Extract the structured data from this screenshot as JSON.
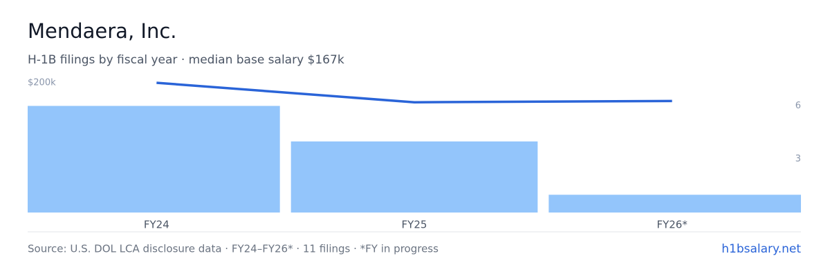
{
  "chart_data": {
    "type": "bar",
    "title": "Mendaera, Inc.",
    "subtitle": "H-1B filings by fiscal year · median base salary $167k",
    "categories": [
      "FY24",
      "FY25",
      "FY26*"
    ],
    "series": [
      {
        "name": "Filings",
        "type": "bar",
        "axis": "y2",
        "color": "#93c5fb",
        "values": [
          6,
          4,
          1
        ]
      },
      {
        "name": "Median base salary",
        "type": "line",
        "axis": "y",
        "color": "#2a64d8",
        "values": [
          200000,
          170000,
          172000
        ]
      }
    ],
    "ylim": [
      0,
      200000
    ],
    "yticks": [
      {
        "value": 200000,
        "label": "$200k"
      }
    ],
    "y2lim": [
      0,
      7.3
    ],
    "y2ticks": [
      3,
      6
    ],
    "source": "Source: U.S. DOL LCA disclosure data · FY24–FY26* · 11 filings · *FY in progress",
    "site": "h1bsalary.net"
  }
}
